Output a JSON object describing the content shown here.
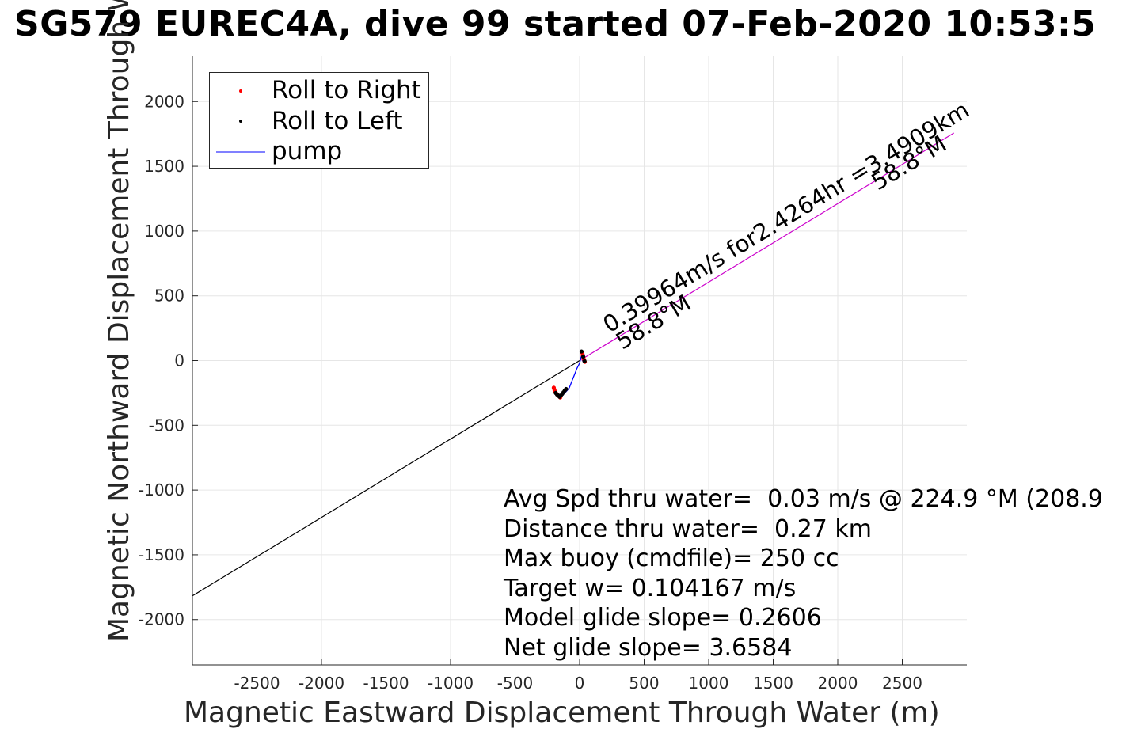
{
  "title": "SG579 EUREC4A, dive 99 started 07-Feb-2020 10:53:5",
  "chart_data": {
    "type": "scatter",
    "xlabel": "Magnetic Eastward Displacement Through Water (m)",
    "ylabel": "Magnetic Northward Displacement Through Water(",
    "xlim": [
      -3000,
      3000
    ],
    "ylim": [
      -2350,
      2350
    ],
    "xticks": [
      -2500,
      -2000,
      -1500,
      -1000,
      -500,
      0,
      500,
      1000,
      1500,
      2000,
      2500
    ],
    "yticks": [
      -2000,
      -1500,
      -1000,
      -500,
      0,
      500,
      1000,
      1500,
      2000
    ],
    "grid": true,
    "legend_position": "top-left",
    "series": [
      {
        "name": "Roll to Right",
        "marker": "dot",
        "color": "#ff0000",
        "x": [
          -200,
          -195,
          -190,
          -180,
          -170,
          -160,
          -150,
          20,
          25,
          30,
          35,
          40
        ],
        "y": [
          -210,
          -225,
          -240,
          -255,
          -265,
          -275,
          -285,
          60,
          40,
          20,
          5,
          -10
        ]
      },
      {
        "name": "Roll to Left",
        "marker": "dot",
        "color": "#000000",
        "x": [
          -185,
          -175,
          -165,
          -155,
          -145,
          -135,
          -125,
          -115,
          -105,
          15,
          28,
          38
        ],
        "y": [
          -250,
          -262,
          -270,
          -280,
          -270,
          -258,
          -245,
          -232,
          -220,
          70,
          30,
          -5
        ]
      },
      {
        "name": "pump",
        "marker": "line",
        "color": "#0000ff",
        "x": [
          -200,
          -190,
          -175,
          -160,
          -150,
          -140,
          -125,
          -110,
          -95,
          -80,
          -60,
          -40,
          -20,
          0,
          15,
          25,
          35,
          30,
          20,
          35,
          40
        ],
        "y": [
          -205,
          -230,
          -255,
          -275,
          -290,
          -278,
          -262,
          -245,
          -230,
          -210,
          -160,
          -110,
          -60,
          -20,
          40,
          70,
          50,
          10,
          -5,
          30,
          -15
        ]
      }
    ],
    "trend_lines": [
      {
        "color": "#cc00cc",
        "x": [
          0,
          2900
        ],
        "y": [
          0,
          1757
        ]
      },
      {
        "color": "#000000",
        "x": [
          0,
          -3000
        ],
        "y": [
          0,
          -1817
        ]
      }
    ],
    "annotations": [
      {
        "text": "0.39964m/s for2.4264hr =3.4909km",
        "x": 230,
        "y": 210,
        "angle_deg": -31.2
      },
      {
        "text": "58.8°M",
        "x": 330,
        "y": 80,
        "angle_deg": -31.2
      },
      {
        "text": "58.8°M",
        "x": 2310,
        "y": 1310,
        "angle_deg": -31.2
      }
    ],
    "stats": [
      "Avg Spd thru water=  0.03 m/s @ 224.9 °M (208.9",
      "Distance thru water=  0.27 km",
      "Max buoy (cmdfile)= 250 cc",
      "Target w= 0.104167 m/s",
      "Model glide slope= 0.2606",
      "Net glide slope= 3.6584"
    ]
  }
}
